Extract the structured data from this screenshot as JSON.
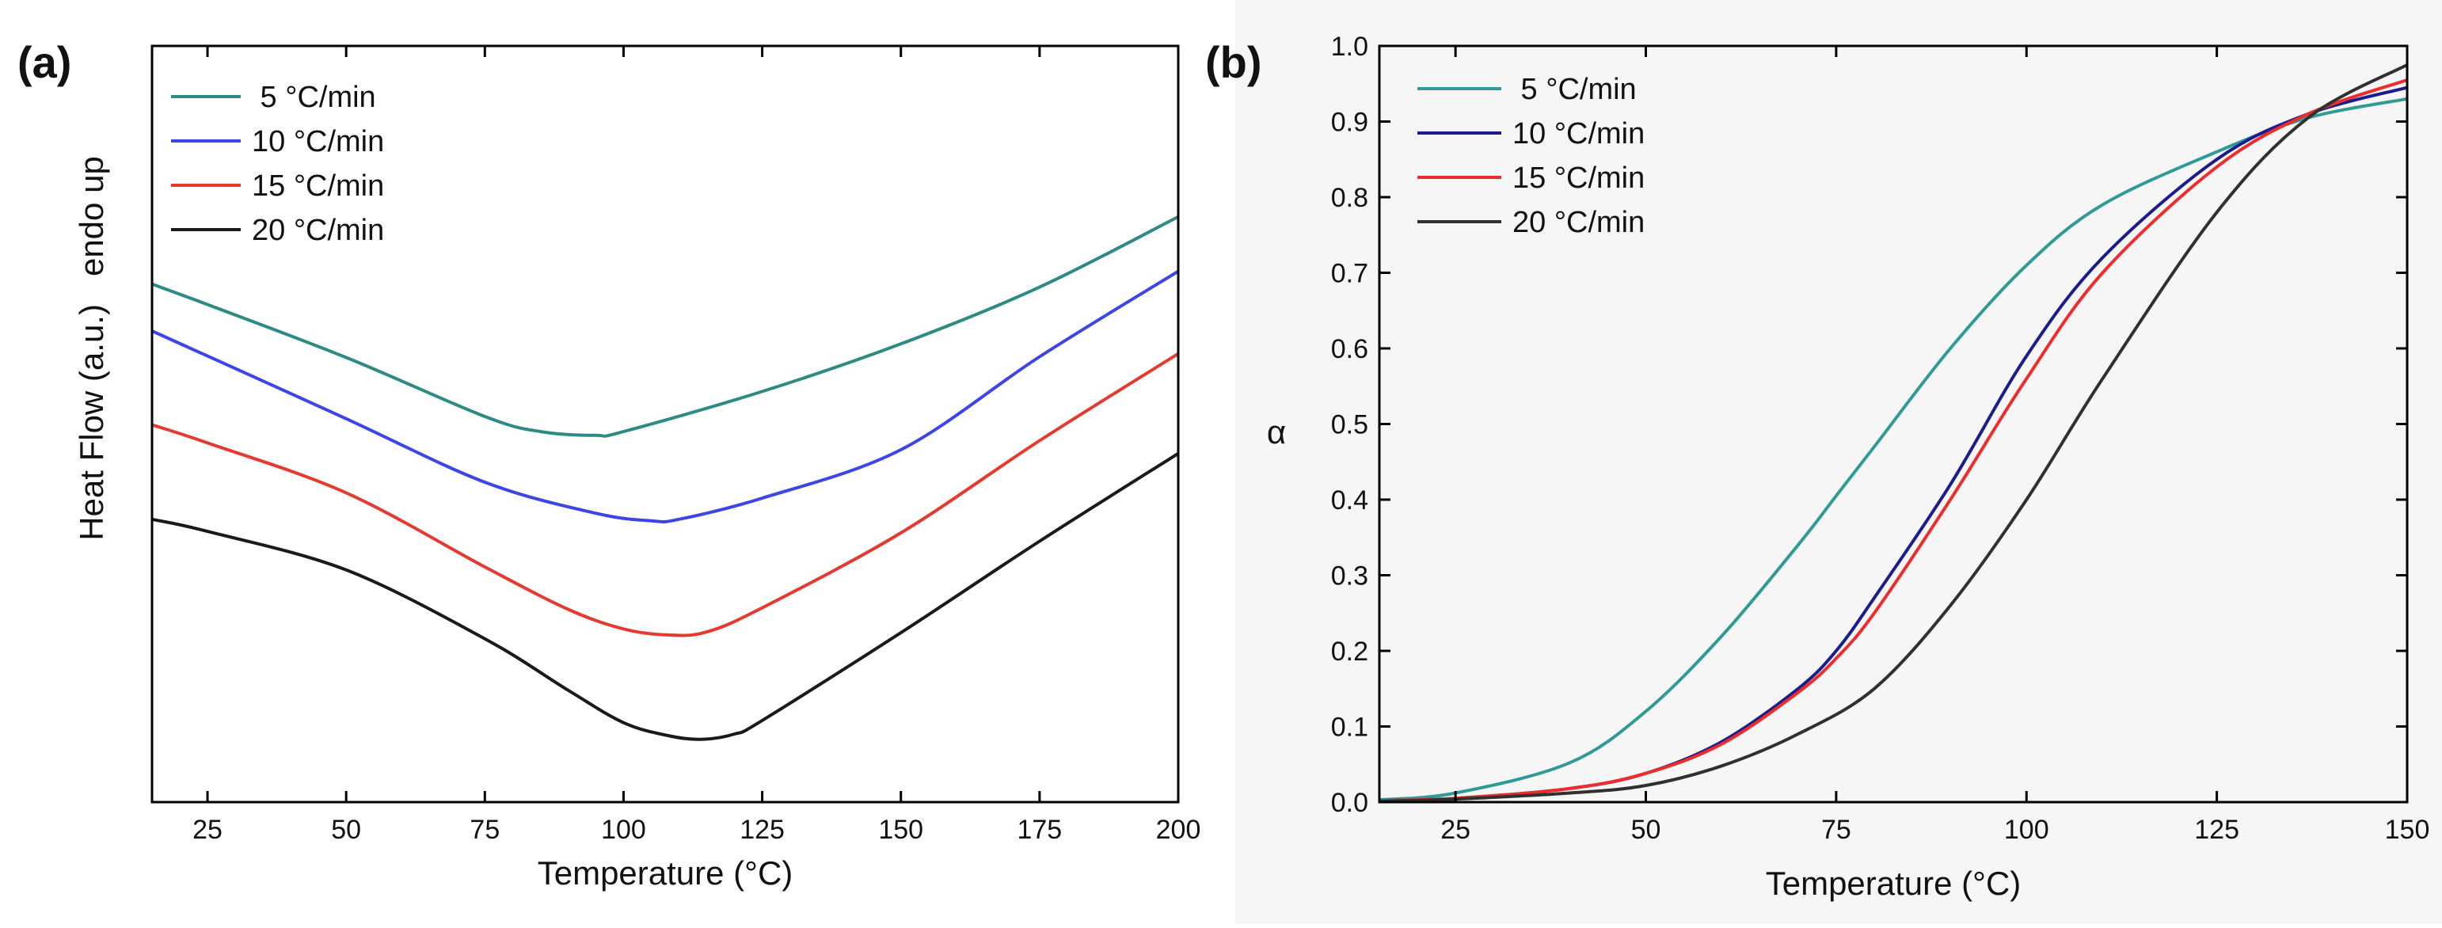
{
  "chart_data": [
    {
      "panel_label": "(a)",
      "type": "line",
      "xlabel": "Temperature (°C)",
      "ylabel": "Heat Flow (a.u.)   endo up",
      "xlim": [
        15,
        200
      ],
      "ylim": [
        0,
        100
      ],
      "y_tick_labels_shown": false,
      "xticks": [
        25,
        50,
        75,
        100,
        125,
        150,
        175,
        200
      ],
      "legend": {
        "placement": "top-left"
      },
      "series": [
        {
          "name": " 5 °C/min",
          "color": "#2e8b84",
          "x": [
            15,
            25,
            50,
            75,
            85,
            95,
            100,
            125,
            150,
            175,
            200
          ],
          "y": [
            68.5,
            65.8,
            58.8,
            51,
            49,
            48.5,
            49,
            54.3,
            60.6,
            68.1,
            77.4
          ]
        },
        {
          "name": "10 °C/min",
          "color": "#3c46e6",
          "x": [
            15,
            25,
            50,
            75,
            95,
            105,
            110,
            125,
            150,
            175,
            200
          ],
          "y": [
            62.3,
            59,
            50.7,
            42.3,
            38.2,
            37.2,
            37.4,
            40.2,
            46.6,
            58.9,
            70.2
          ]
        },
        {
          "name": "15 °C/min",
          "color": "#e53a30",
          "x": [
            15,
            25,
            50,
            75,
            90,
            100,
            108,
            115,
            125,
            150,
            175,
            200
          ],
          "y": [
            49.9,
            47.5,
            40.9,
            31.1,
            25.5,
            22.9,
            22.1,
            22.5,
            25.7,
            35.6,
            47.8,
            59.3
          ]
        },
        {
          "name": "20 °C/min",
          "color": "#1a1a1a",
          "x": [
            15,
            25,
            50,
            75,
            90,
            100,
            108,
            114,
            120,
            125,
            150,
            175,
            200
          ],
          "y": [
            37.4,
            35.8,
            30.7,
            21.6,
            14.8,
            10.5,
            8.8,
            8.3,
            9,
            10.8,
            22.4,
            34.5,
            46.1
          ]
        }
      ]
    },
    {
      "panel_label": "(b)",
      "type": "line",
      "xlabel": "Temperature (°C)",
      "ylabel": "α",
      "xlim": [
        15,
        150
      ],
      "ylim": [
        0,
        1.0
      ],
      "xticks": [
        25,
        50,
        75,
        100,
        125,
        150
      ],
      "yticks": [
        0.0,
        0.1,
        0.2,
        0.3,
        0.4,
        0.5,
        0.6,
        0.7,
        0.8,
        0.9,
        1.0
      ],
      "ytick_labels": [
        "0.0",
        "0.1",
        "0.2",
        "0.3",
        "0.4",
        "0.5",
        "0.6",
        "0.7",
        "0.8",
        "0.9",
        "1.0"
      ],
      "legend": {
        "placement": "top-left"
      },
      "series": [
        {
          "name": " 5 °C/min",
          "color": "#2f9a96",
          "x": [
            15,
            25,
            40,
            50,
            60,
            70,
            75,
            80,
            90,
            100,
            110,
            125,
            137,
            150
          ],
          "y": [
            0.003,
            0.012,
            0.052,
            0.12,
            0.22,
            0.34,
            0.405,
            0.47,
            0.6,
            0.71,
            0.79,
            0.86,
            0.905,
            0.93
          ]
        },
        {
          "name": "10 °C/min",
          "color": "#1c1c8c",
          "x": [
            15,
            25,
            40,
            50,
            60,
            70,
            75,
            80,
            90,
            100,
            110,
            125,
            137,
            150
          ],
          "y": [
            0.002,
            0.005,
            0.018,
            0.038,
            0.08,
            0.15,
            0.2,
            0.27,
            0.42,
            0.59,
            0.72,
            0.85,
            0.91,
            0.945
          ]
        },
        {
          "name": "15 °C/min",
          "color": "#ee2c2c",
          "x": [
            15,
            25,
            40,
            50,
            60,
            70,
            75,
            80,
            90,
            100,
            110,
            125,
            137,
            150
          ],
          "y": [
            0.002,
            0.005,
            0.018,
            0.038,
            0.077,
            0.145,
            0.19,
            0.25,
            0.4,
            0.56,
            0.7,
            0.84,
            0.91,
            0.955
          ]
        },
        {
          "name": "20 °C/min",
          "color": "#303030",
          "x": [
            15,
            25,
            40,
            50,
            60,
            70,
            80,
            90,
            100,
            110,
            125,
            137,
            150
          ],
          "y": [
            0.001,
            0.004,
            0.012,
            0.022,
            0.048,
            0.09,
            0.15,
            0.26,
            0.4,
            0.56,
            0.78,
            0.905,
            0.975
          ]
        }
      ]
    }
  ]
}
